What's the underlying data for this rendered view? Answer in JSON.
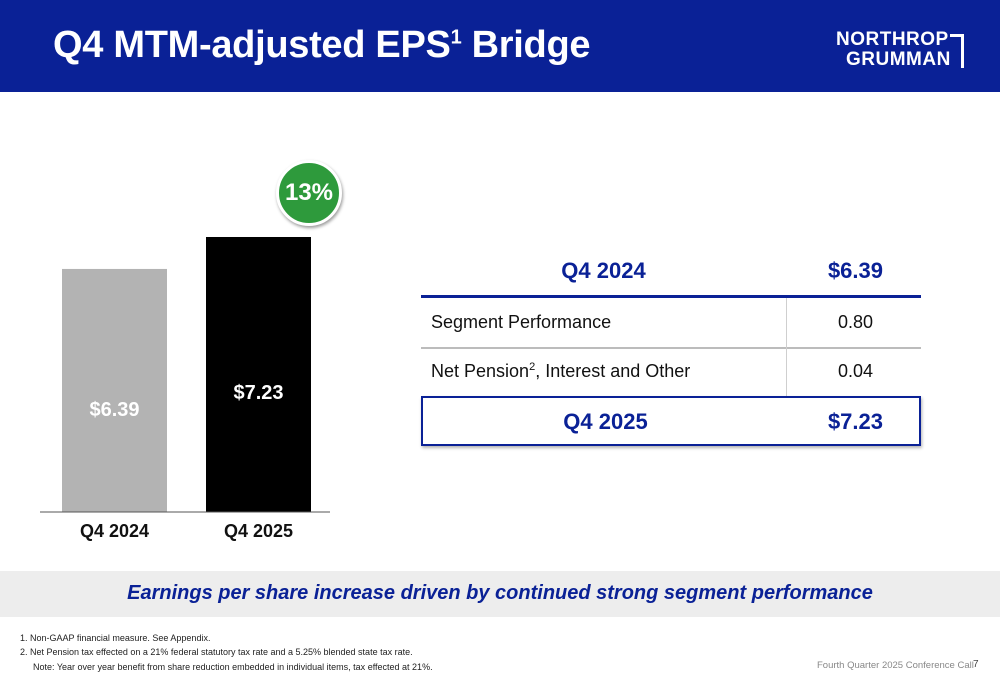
{
  "header": {
    "title_main": "Q4 MTM-adjusted EPS",
    "title_sup": "1",
    "title_end": " Bridge",
    "logo_line1": "NORTHROP",
    "logo_line2": "GRUMMAN"
  },
  "chart_data": {
    "type": "bar",
    "categories": [
      "Q4 2024",
      "Q4 2025"
    ],
    "values": [
      6.39,
      7.23
    ],
    "data_labels": [
      "$6.39",
      "$7.23"
    ],
    "bar_colors": [
      "#b3b3b3",
      "#000000"
    ],
    "ylim": [
      0,
      8.15
    ],
    "grid": false,
    "annotation": "13%",
    "annotation_color": "#2e9a3c"
  },
  "table": {
    "header_label": "Q4 2024",
    "header_value": "$6.39",
    "rows": [
      {
        "label": "Segment Performance",
        "sup": "",
        "label_after": "",
        "value": "0.80"
      },
      {
        "label": "Net Pension",
        "sup": "2",
        "label_after": ", Interest and Other",
        "value": "0.04"
      }
    ],
    "total_label": "Q4 2025",
    "total_value": "$7.23"
  },
  "banner": "Earnings per share increase driven by continued strong segment performance",
  "footnotes": {
    "f1": "1.   Non-GAAP financial measure. See Appendix.",
    "f2": "2.   Net Pension tax effected on a 21% federal statutory tax rate and a 5.25% blended state tax rate.",
    "note": "Note:  Year over year benefit from share reduction embedded in individual items, tax effected at 21%."
  },
  "footer": {
    "text": "Fourth Quarter 2025 Conference Call",
    "page": "7"
  },
  "colors": {
    "brand_blue": "#0a2196",
    "green": "#2e9a3c"
  }
}
